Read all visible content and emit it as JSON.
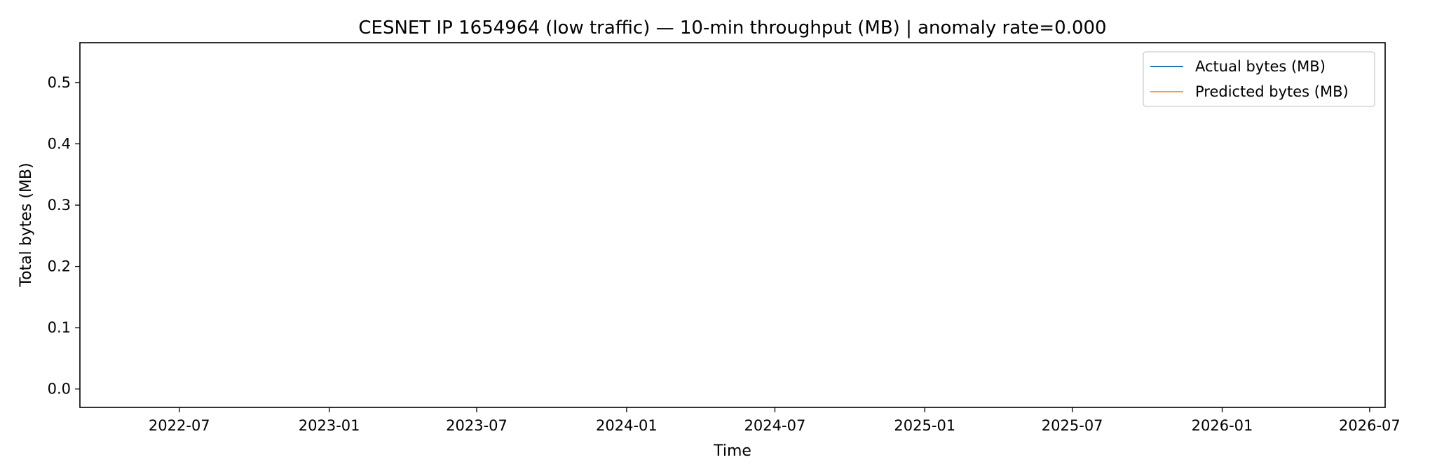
{
  "chart_data": {
    "type": "line",
    "title": "CESNET IP 1654964 (low traffic) — 10-min throughput (MB) | anomaly rate=0.000",
    "xlabel": "Time",
    "ylabel": "Total bytes (MB)",
    "xlim": [
      "2022-03-01",
      "2026-07-20"
    ],
    "ylim": [
      -0.03,
      0.565
    ],
    "x_scale": "time",
    "x_ticks": [
      "2022-07",
      "2023-01",
      "2023-07",
      "2024-01",
      "2024-07",
      "2025-01",
      "2025-07",
      "2026-01",
      "2026-07"
    ],
    "y_ticks": [
      "0.0",
      "0.1",
      "0.2",
      "0.3",
      "0.4",
      "0.5"
    ],
    "grid": false,
    "legend_position": "top-right",
    "series": [
      {
        "name": "Actual bytes (MB)",
        "color": "#1f77b4",
        "x": [],
        "y": []
      },
      {
        "name": "Predicted bytes (MB)",
        "color": "#ff7f0e",
        "x": [],
        "y": []
      }
    ]
  }
}
